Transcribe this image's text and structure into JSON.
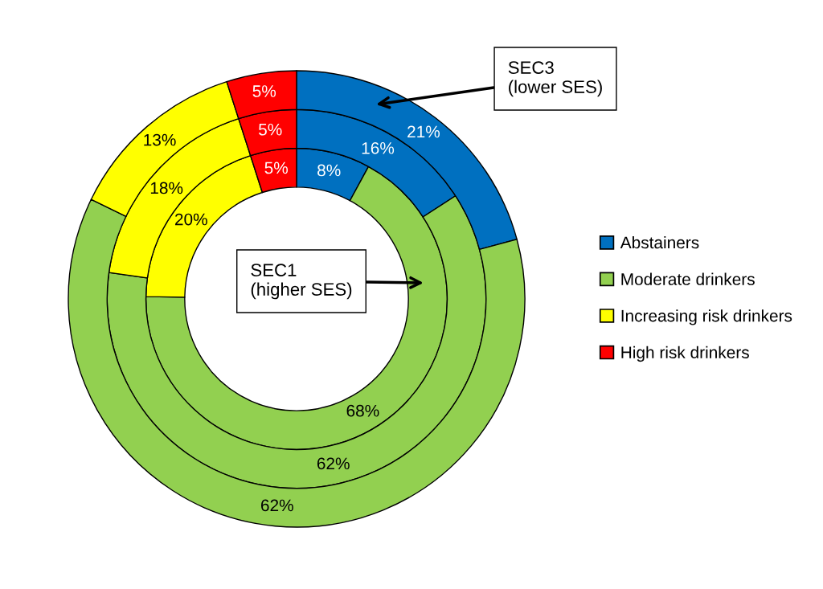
{
  "chart_data": {
    "type": "donut",
    "categories": [
      "Abstainers",
      "Moderate drinkers",
      "Increasing risk drinkers",
      "High risk drinkers"
    ],
    "colors": [
      "#0070c0",
      "#92d050",
      "#ffff00",
      "#ff0000"
    ],
    "series": [
      {
        "values": [
          8,
          68,
          20,
          5
        ],
        "value_labels": [
          "8%",
          "68%",
          "20%",
          "5%"
        ]
      },
      {
        "values": [
          16,
          62,
          18,
          5
        ],
        "value_labels": [
          "16%",
          "62%",
          "18%",
          "5%"
        ]
      },
      {
        "values": [
          21,
          62,
          13,
          5
        ],
        "value_labels": [
          "21%",
          "62%",
          "13%",
          "5%"
        ]
      }
    ],
    "annotations": [
      "SEC3\n(lower SES)",
      "SEC1\n(higher SES)"
    ],
    "legend": "right"
  }
}
